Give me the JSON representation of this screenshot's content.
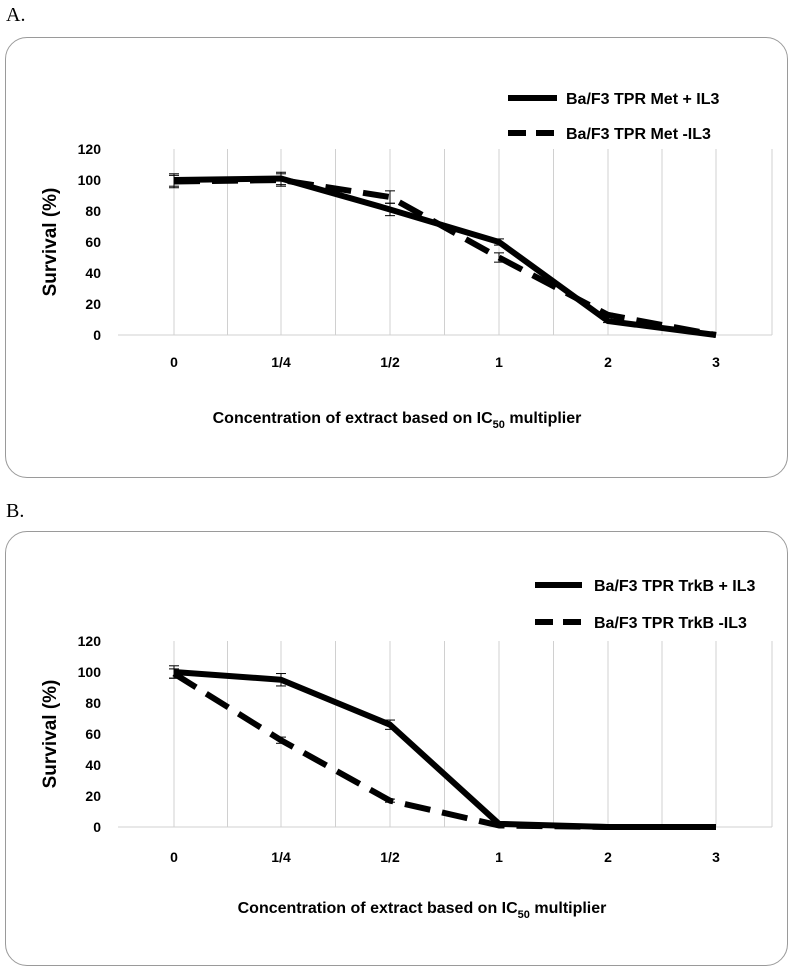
{
  "panels": [
    {
      "label": "A."
    },
    {
      "label": "B."
    }
  ],
  "chart_data": [
    {
      "type": "line",
      "categories": [
        "0",
        "1/4",
        "1/2",
        "1",
        "2",
        "3"
      ],
      "ylabel": "Survival (%)",
      "xlabel_prefix": "Concentration of extract based on IC",
      "xlabel_subscript": "50",
      "xlabel_suffix": " multiplier",
      "ylim": [
        0,
        120
      ],
      "yticks": [
        "0",
        "20",
        "40",
        "60",
        "80",
        "100",
        "120"
      ],
      "grid": "vertical",
      "legend_position": "top-right",
      "series": [
        {
          "name": "Ba/F3 TPR Met  + IL3",
          "style": "solid",
          "values": [
            100,
            101,
            81,
            60,
            9,
            0
          ],
          "errors": [
            4,
            4,
            4,
            2,
            1,
            0
          ]
        },
        {
          "name": "Ba/F3 TPR Met   -IL3",
          "style": "dashed",
          "values": [
            99,
            100,
            89,
            50,
            13,
            0
          ],
          "errors": [
            4,
            4,
            4,
            3,
            1,
            0
          ]
        }
      ]
    },
    {
      "type": "line",
      "categories": [
        "0",
        "1/4",
        "1/2",
        "1",
        "2",
        "3"
      ],
      "ylabel": "Survival (%)",
      "xlabel_prefix": "Concentration of extract based on IC",
      "xlabel_subscript": "50",
      "xlabel_suffix": " multiplier",
      "ylim": [
        0,
        120
      ],
      "yticks": [
        "0",
        "20",
        "40",
        "60",
        "80",
        "100",
        "120"
      ],
      "grid": "vertical",
      "legend_position": "top-right",
      "series": [
        {
          "name": "Ba/F3 TPR TrkB  + IL3",
          "style": "solid",
          "values": [
            100,
            95,
            66,
            2,
            0,
            0
          ],
          "errors": [
            4,
            4,
            3,
            0,
            0,
            0
          ]
        },
        {
          "name": "Ba/F3 TPR TrkB   -IL3",
          "style": "dashed",
          "values": [
            99,
            56,
            17,
            1,
            0,
            0
          ],
          "errors": [
            3,
            2,
            1,
            0,
            0,
            0
          ]
        }
      ]
    }
  ]
}
